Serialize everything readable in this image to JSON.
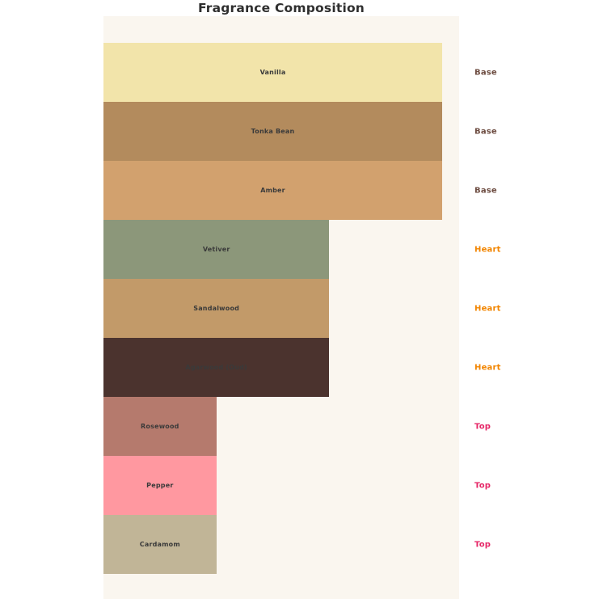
{
  "page": {
    "background": "#ffffff"
  },
  "chart_data": {
    "type": "bar",
    "orientation": "horizontal",
    "title": "Fragrance Composition",
    "title_color": "#2f2f2f",
    "categories": [
      "Vanilla",
      "Tonka Bean",
      "Amber",
      "Vetiver",
      "Sandalwood",
      "Agarwood (Oud)",
      "Rosewood",
      "Pepper",
      "Cardamom"
    ],
    "values": [
      3,
      3,
      3,
      2,
      2,
      2,
      1,
      1,
      1
    ],
    "group_labels": [
      "Base",
      "Base",
      "Base",
      "Heart",
      "Heart",
      "Heart",
      "Top",
      "Top",
      "Top"
    ],
    "bar_colors": [
      "#f2e4aa",
      "#b38b5d",
      "#d2a16e",
      "#8c977a",
      "#c29a69",
      "#4b332e",
      "#b57a6d",
      "#ff98a0",
      "#c1b597"
    ],
    "group_label_colors": {
      "Base": "#6d4c41",
      "Heart": "#f28500",
      "Top": "#e62868"
    },
    "bar_label_color": "#3a3a3a",
    "plot_background": "#faf6ef",
    "xlabel": "",
    "ylabel": "",
    "xlim": [
      0,
      3.15
    ],
    "grid": false,
    "legend_position": "none",
    "axis_ticks_visible": false
  }
}
